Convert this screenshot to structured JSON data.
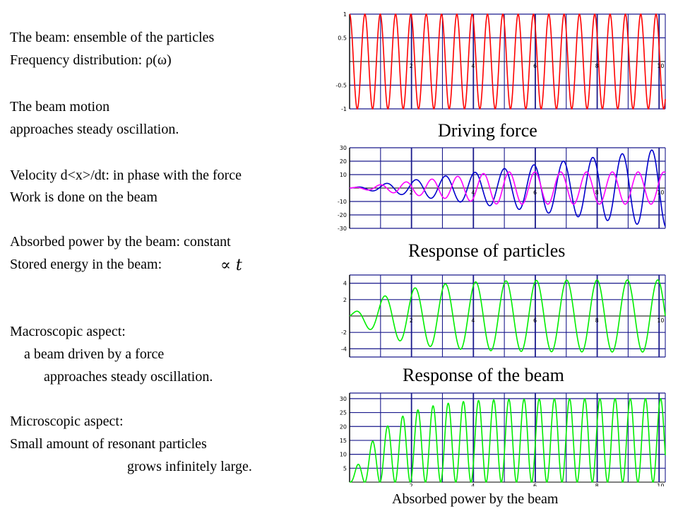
{
  "text_lines": [
    "The beam: ensemble of the particles",
    "Frequency distribution: ρ(ω)",
    "The beam motion",
    "approaches steady oscillation.",
    "Velocity d<x>/dt: in phase with the force",
    "Work is done on the beam",
    "Absorbed power by the beam: constant",
    "Stored energy in the beam:",
    "Macroscopic aspect:",
    "a beam driven by a force",
    "approaches steady oscillation.",
    "Microscopic aspect:",
    "Small amount of resonant particles",
    "grows infinitely large."
  ],
  "proportional_symbol": "∝ t",
  "captions": {
    "driving_force": "Driving force",
    "response_particles": "Response  of particles",
    "response_beam": "Response  of the beam",
    "absorbed_power": "Absorbed power by the beam"
  },
  "chart_data": [
    {
      "id": "driving-force",
      "type": "line",
      "xlim": [
        0,
        10.2
      ],
      "ylim": [
        -1,
        1
      ],
      "xticks": [
        "2",
        "4",
        "6",
        "8",
        "10"
      ],
      "yticks": [
        "1",
        "0.5",
        "-0.5",
        "-1"
      ],
      "grid": true,
      "series": [
        {
          "color": "#ff0000",
          "description_fn": "sin",
          "frequency_cycles": 20.2,
          "amplitude": 1
        }
      ]
    },
    {
      "id": "response-particles",
      "type": "line",
      "xlim": [
        0,
        10.2
      ],
      "ylim": [
        -30,
        30
      ],
      "xticks": [
        "2",
        "4",
        "6",
        "8",
        "10"
      ],
      "yticks": [
        "30",
        "20",
        "10",
        "-10",
        "-20",
        "-30"
      ],
      "grid": true,
      "series": [
        {
          "color": "#0000cc",
          "frequency_cycles": 10.5,
          "amplitude_growth": 2.9
        },
        {
          "color": "#ff00ff",
          "frequency_cycles": 12.0,
          "amplitude_cap": 12
        }
      ]
    },
    {
      "id": "response-beam",
      "type": "line",
      "xlim": [
        0,
        10.2
      ],
      "ylim": [
        -5,
        5
      ],
      "xticks": [
        "2",
        "4",
        "6",
        "8",
        "10"
      ],
      "yticks": [
        "4",
        "2",
        "-2",
        "-4"
      ],
      "grid": true,
      "series": [
        {
          "color": "#00ee00",
          "frequency_cycles": 10.2,
          "amplitude_max": 4.4
        }
      ]
    },
    {
      "id": "absorbed-power",
      "type": "line",
      "xlim": [
        0,
        10.2
      ],
      "ylim": [
        0,
        32
      ],
      "xticks": [
        "2",
        "4",
        "6",
        "8",
        "10"
      ],
      "yticks": [
        "30",
        "25",
        "20",
        "15",
        "10",
        "5"
      ],
      "grid": true,
      "series": [
        {
          "color": "#00ee00",
          "frequency_cycles": 20.4,
          "amplitude_max": 30
        }
      ]
    }
  ]
}
